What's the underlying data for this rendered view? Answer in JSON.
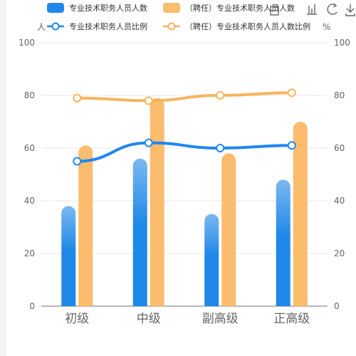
{
  "chart_data": {
    "type": "bar",
    "categories": [
      "初级",
      "中级",
      "副高级",
      "正高级"
    ],
    "series": [
      {
        "name": "专业技术职务人员人数",
        "kind": "bar",
        "axis": "left",
        "color": "#1f88e8",
        "color_light": "#7ab8f0",
        "values": [
          38,
          56,
          35,
          48
        ]
      },
      {
        "name": "（聘任）专业技术职务人员人数",
        "kind": "bar",
        "axis": "left",
        "color": "#fbbc6e",
        "values": [
          61,
          79,
          58,
          70
        ]
      },
      {
        "name": "专业技术职务人员比例",
        "kind": "line",
        "axis": "right",
        "color": "#1e87f0",
        "values": [
          55,
          62,
          60,
          61
        ]
      },
      {
        "name": "（聘任）专业技术职务人员人数比例",
        "kind": "line",
        "axis": "right",
        "color": "#f7b45c",
        "values": [
          79,
          78,
          80,
          81
        ]
      }
    ],
    "ylabel_left": "人",
    "ylabel_right": "%",
    "ylim_left": [
      0,
      100
    ],
    "ylim_right": [
      0,
      100
    ],
    "yticks": [
      0,
      20,
      40,
      60,
      80,
      100
    ],
    "grid": true,
    "legend_position": "top"
  },
  "toolbox": [
    "restore-icon",
    "bar-chart-icon",
    "refresh-icon",
    "download-icon"
  ]
}
